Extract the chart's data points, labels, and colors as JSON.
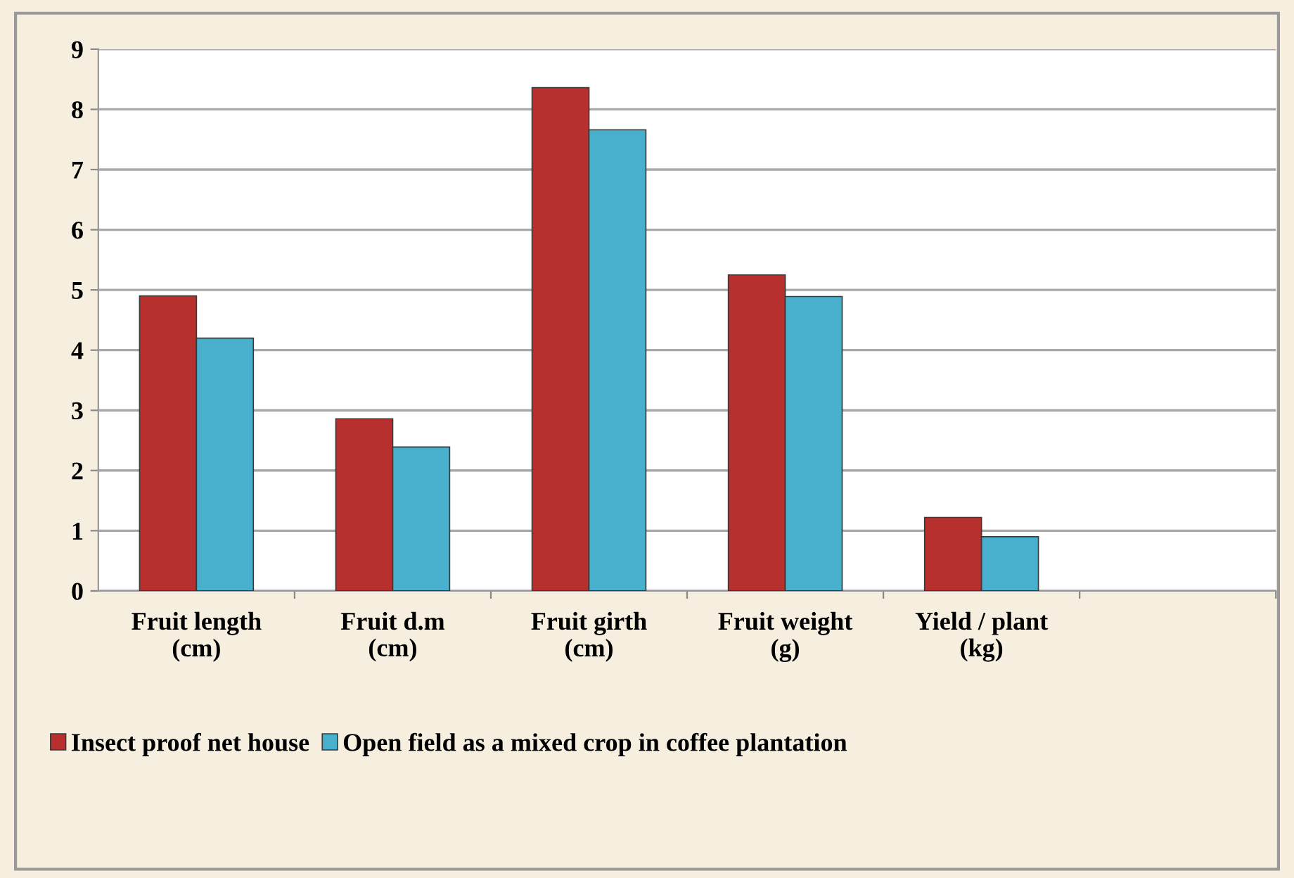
{
  "chart_data": {
    "type": "bar",
    "categories": [
      "Fruit length\n(cm)",
      "Fruit d.m\n(cm)",
      "Fruit girth\n(cm)",
      "Fruit weight\n(g)",
      "Yield / plant\n(kg)",
      null
    ],
    "series": [
      {
        "name": "Insect proof net house",
        "color": "#b8302e",
        "values": [
          4.9,
          2.86,
          8.36,
          5.25,
          1.22,
          null
        ]
      },
      {
        "name": "Open field as a mixed crop in coffee plantation",
        "color": "#48b0cc",
        "values": [
          4.2,
          2.39,
          7.66,
          4.89,
          0.9,
          null
        ]
      }
    ],
    "ylim": [
      0,
      9
    ],
    "yticks": [
      0,
      1,
      2,
      3,
      4,
      5,
      6,
      7,
      8,
      9
    ],
    "grid": "y",
    "legend": "bottom"
  }
}
